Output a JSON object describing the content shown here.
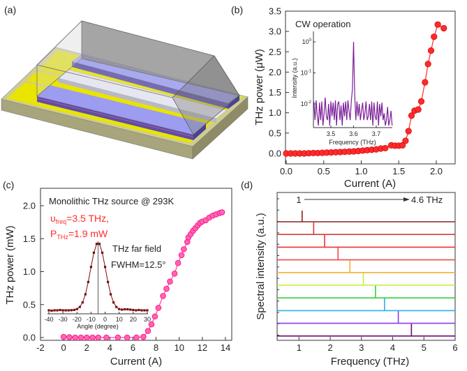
{
  "panel_labels": {
    "a": "(a)",
    "b": "(b)",
    "c": "(c)",
    "d": "(d)"
  },
  "device_illustration": {
    "colors": {
      "substrate_top": "#cfcc92",
      "substrate_side": "#9c9872",
      "gold_pad": "#e9e400",
      "slab_top": "#9c9cf0",
      "slab_side": "#5a50a8",
      "ridge": "#e6e6f0",
      "prism": "#7d7d7d"
    }
  },
  "chart_data": [
    {
      "panel": "b",
      "type": "line",
      "xlabel": "Current (A)",
      "ylabel": "THz power (μW)",
      "xlim": [
        0,
        2.25
      ],
      "ylim": [
        -0.1,
        3.5
      ],
      "xticks": [
        "0.0",
        "0.5",
        "1.0",
        "1.5",
        "2.0"
      ],
      "xtick_values": [
        0,
        0.5,
        1,
        1.5,
        2
      ],
      "yticks": [
        "0.0",
        "0.5",
        "1.0",
        "1.5",
        "2.0",
        "2.5",
        "3.0",
        "3.5"
      ],
      "ytick_values": [
        0,
        0.5,
        1,
        1.5,
        2,
        2.5,
        3,
        3.5
      ],
      "annotation": "CW operation",
      "color": "#ff2a2a",
      "x": [
        0,
        0.06,
        0.12,
        0.18,
        0.24,
        0.3,
        0.36,
        0.42,
        0.48,
        0.54,
        0.6,
        0.66,
        0.72,
        0.78,
        0.84,
        0.9,
        0.96,
        1.02,
        1.08,
        1.14,
        1.2,
        1.26,
        1.32,
        1.4,
        1.45,
        1.5,
        1.55,
        1.59,
        1.63,
        1.67,
        1.71,
        1.76,
        1.8,
        1.85,
        1.89,
        1.93,
        1.97,
        2.02,
        2.1
      ],
      "y": [
        0,
        0,
        0,
        0,
        0,
        0.005,
        0.01,
        0.01,
        0.015,
        0.02,
        0.025,
        0.03,
        0.035,
        0.04,
        0.045,
        0.05,
        0.06,
        0.07,
        0.08,
        0.09,
        0.1,
        0.12,
        0.13,
        0.2,
        0.19,
        0.19,
        0.2,
        0.31,
        0.55,
        0.93,
        1.05,
        1.08,
        1.28,
        1.75,
        2.2,
        2.53,
        2.87,
        3.17,
        3.08
      ],
      "inset": {
        "type": "line",
        "xlabel": "Frequency (THz)",
        "ylabel": "Intensity (a.u.)",
        "yscale": "log",
        "xlim": [
          3.423,
          3.77
        ],
        "ylim": [
          0.0017,
          2.2
        ],
        "xticks": [
          "3.5",
          "3.6",
          "3.7"
        ],
        "xtick_values": [
          3.5,
          3.6,
          3.7
        ],
        "yticks": [
          {
            "base": "10",
            "exp": "0",
            "value": 1
          },
          {
            "base": "10",
            "exp": "-1",
            "value": 0.1
          },
          {
            "base": "10",
            "exp": "-2",
            "value": 0.01
          }
        ],
        "color": "#7b1f99",
        "x_start": 3.425,
        "x_step": 0.005,
        "y": [
          0.012,
          0.003,
          0.013,
          0.004,
          0.002,
          0.011,
          0.003,
          0.012,
          0.002,
          0.005,
          0.016,
          0.004,
          0.003,
          0.01,
          0.002,
          0.012,
          0.004,
          0.011,
          0.003,
          0.013,
          0.002,
          0.01,
          0.012,
          0.003,
          0.009,
          0.002,
          0.011,
          0.004,
          0.012,
          0.003,
          0.013,
          0.006,
          0.003,
          0.012,
          0.03,
          1.0,
          0.02,
          0.003,
          0.012,
          0.004,
          0.01,
          0.003,
          0.006,
          0.011,
          0.003,
          0.005,
          0.012,
          0.003,
          0.004,
          0.01,
          0.003,
          0.012,
          0.002,
          0.011,
          0.004,
          0.003,
          0.012,
          0.002,
          0.01,
          0.004,
          0.011,
          0.003,
          0.005,
          0.002,
          0.003,
          0.008,
          0.002,
          0.003,
          0.006,
          0.002
        ]
      }
    },
    {
      "panel": "c",
      "type": "line",
      "xlabel": "Current (A)",
      "ylabel": "THz power (mW)",
      "xlim": [
        -2,
        14.9
      ],
      "ylim": [
        -0.02,
        2.25
      ],
      "xticks": [
        "-2",
        "0",
        "2",
        "4",
        "6",
        "8",
        "10",
        "12",
        "14"
      ],
      "xtick_values": [
        -2,
        0,
        2,
        4,
        6,
        8,
        10,
        12,
        14
      ],
      "yticks": [
        "0.0",
        "0.5",
        "1.0",
        "1.5",
        "2.0"
      ],
      "ytick_values": [
        0,
        0.5,
        1,
        1.5,
        2
      ],
      "color": "#ff1a8c",
      "annotations": {
        "title": "Monolithic THz source @ 293K",
        "freq_symbol": "υ",
        "freq_sub": "freq",
        "freq_value": "=3.5 THz,",
        "power_symbol": "P",
        "power_sub": "THz",
        "power_value": "=1.9 mW",
        "far_field": "THz far field",
        "fwhm": "FWHM=12.5°",
        "highlight_color": "#ff2a2a"
      },
      "x": [
        0,
        0.5,
        1,
        1.5,
        2,
        2.5,
        3,
        3.7,
        4.7,
        5.5,
        6.3,
        6.9,
        7.3,
        7.6,
        7.9,
        8.2,
        8.6,
        8.9,
        9.2,
        9.6,
        9.9,
        10.2,
        10.4,
        10.7,
        10.8,
        11.0,
        11.2,
        11.4,
        11.6,
        11.8,
        12.0,
        12.3,
        12.6,
        12.9,
        13.2,
        13.5,
        13.7
      ],
      "y": [
        0.01,
        0.005,
        0.0,
        0.0,
        0.0,
        0.0,
        0.0,
        0.0,
        0.0,
        0.0,
        0.0,
        0.01,
        0.1,
        0.2,
        0.32,
        0.45,
        0.63,
        0.74,
        0.85,
        0.97,
        1.13,
        1.25,
        1.34,
        1.45,
        1.52,
        1.57,
        1.62,
        1.66,
        1.7,
        1.74,
        1.76,
        1.78,
        1.82,
        1.85,
        1.87,
        1.89,
        1.9
      ],
      "inset": {
        "type": "line",
        "xlabel": "Angle (degree)",
        "xlim": [
          -40,
          30
        ],
        "xticks": [
          "-40",
          "-30",
          "-20",
          "-10",
          "0",
          "10",
          "20",
          "30"
        ],
        "xtick_values": [
          -40,
          -30,
          -20,
          -10,
          0,
          10,
          20,
          30
        ],
        "peak_angle": -5,
        "color": "#7a0c0c",
        "x": [
          -40,
          -38,
          -36,
          -34,
          -32,
          -30,
          -28,
          -26,
          -24,
          -22,
          -20,
          -18,
          -16,
          -14,
          -12,
          -10,
          -8,
          -6,
          -4,
          -2,
          0,
          2,
          4,
          6,
          8,
          10,
          12,
          14,
          16,
          18,
          20,
          22,
          24,
          26,
          28,
          30
        ],
        "y": [
          0.03,
          0.025,
          0.03,
          0.03,
          0.035,
          0.03,
          0.03,
          0.03,
          0.032,
          0.036,
          0.048,
          0.078,
          0.143,
          0.26,
          0.436,
          0.652,
          0.856,
          0.983,
          0.983,
          0.856,
          0.652,
          0.436,
          0.26,
          0.143,
          0.078,
          0.048,
          0.04,
          0.045,
          0.045,
          0.04,
          0.035,
          0.03,
          0.035,
          0.03,
          0.03,
          0.03
        ]
      }
    },
    {
      "panel": "d",
      "type": "line",
      "xlabel": "Frequency (THz)",
      "ylabel": "Spectral intensity (a.u.)",
      "xlim": [
        0.3,
        6
      ],
      "xticks": [
        "1",
        "2",
        "3",
        "4",
        "5",
        "6"
      ],
      "xtick_values": [
        1,
        2,
        3,
        4,
        5,
        6
      ],
      "annotation_start": "1",
      "annotation_end": "4.6 THz",
      "series": [
        {
          "peak": 1.1,
          "color": "#8b2020"
        },
        {
          "peak": 1.47,
          "color": "#d83a3a"
        },
        {
          "peak": 1.82,
          "color": "#f03030"
        },
        {
          "peak": 2.25,
          "color": "#f04848"
        },
        {
          "peak": 2.63,
          "color": "#f5b030"
        },
        {
          "peak": 3.06,
          "color": "#c8ec30"
        },
        {
          "peak": 3.45,
          "color": "#38d038"
        },
        {
          "peak": 3.74,
          "color": "#28b0f0"
        },
        {
          "peak": 4.18,
          "color": "#8a3cf0"
        },
        {
          "peak": 4.6,
          "color": "#6a1070"
        }
      ]
    }
  ]
}
